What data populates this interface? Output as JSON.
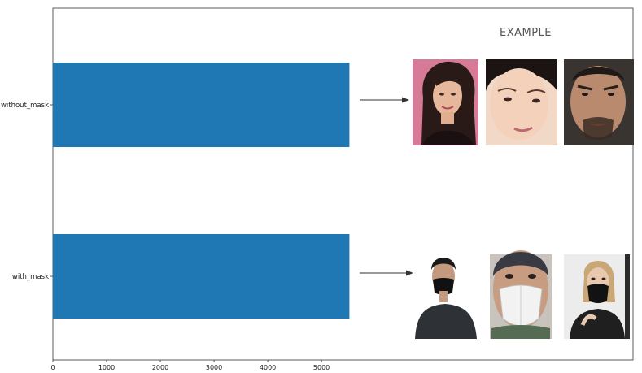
{
  "chart_data": {
    "type": "bar",
    "orientation": "horizontal",
    "categories": [
      "without_mask",
      "with_mask"
    ],
    "values": [
      5520,
      5520
    ],
    "xlim": [
      0,
      10800
    ],
    "xticks": [
      0,
      1000,
      2000,
      3000,
      4000,
      5000
    ],
    "title": "",
    "xlabel": "",
    "ylabel": "",
    "grid": false,
    "bar_color": "#1f77b4",
    "annotation": "EXAMPLE"
  },
  "examples": {
    "without_mask": [
      "face-woman-dark-hair-icon",
      "face-woman-closeup-icon",
      "face-man-beard-icon"
    ],
    "with_mask": [
      "person-black-mask-icon",
      "person-white-respirator-icon",
      "person-woman-black-mask-icon"
    ]
  }
}
